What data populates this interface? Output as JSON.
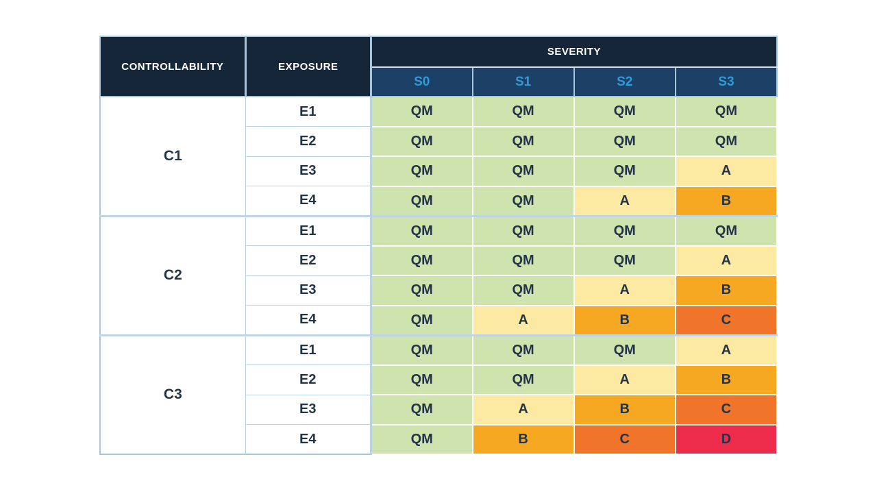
{
  "table": {
    "headers": {
      "controllability": "CONTROLLABILITY",
      "exposure": "EXPOSURE",
      "severity": "SEVERITY"
    },
    "severity_levels": [
      "S0",
      "S1",
      "S2",
      "S3"
    ],
    "groups": [
      {
        "controllability": "C1",
        "rows": [
          {
            "exposure": "E1",
            "values": [
              "QM",
              "QM",
              "QM",
              "QM"
            ]
          },
          {
            "exposure": "E2",
            "values": [
              "QM",
              "QM",
              "QM",
              "QM"
            ]
          },
          {
            "exposure": "E3",
            "values": [
              "QM",
              "QM",
              "QM",
              "A"
            ]
          },
          {
            "exposure": "E4",
            "values": [
              "QM",
              "QM",
              "A",
              "B"
            ]
          }
        ]
      },
      {
        "controllability": "C2",
        "rows": [
          {
            "exposure": "E1",
            "values": [
              "QM",
              "QM",
              "QM",
              "QM"
            ]
          },
          {
            "exposure": "E2",
            "values": [
              "QM",
              "QM",
              "QM",
              "A"
            ]
          },
          {
            "exposure": "E3",
            "values": [
              "QM",
              "QM",
              "A",
              "B"
            ]
          },
          {
            "exposure": "E4",
            "values": [
              "QM",
              "A",
              "B",
              "C"
            ]
          }
        ]
      },
      {
        "controllability": "C3",
        "rows": [
          {
            "exposure": "E1",
            "values": [
              "QM",
              "QM",
              "QM",
              "A"
            ]
          },
          {
            "exposure": "E2",
            "values": [
              "QM",
              "QM",
              "A",
              "B"
            ]
          },
          {
            "exposure": "E3",
            "values": [
              "QM",
              "A",
              "B",
              "C"
            ]
          },
          {
            "exposure": "E4",
            "values": [
              "QM",
              "B",
              "C",
              "D"
            ]
          }
        ]
      }
    ]
  },
  "colors": {
    "header_bg": "#152638",
    "subheader_bg": "#1d4066",
    "severity_text": "#2f9bd8",
    "cell_text": "#243447",
    "grid_border": "#a6c7db",
    "asil": {
      "QM": "#cfe3ae",
      "A": "#fce9a2",
      "B": "#f6a823",
      "C": "#f0752b",
      "D": "#ed2b4a"
    }
  },
  "chart_data": {
    "type": "table",
    "columns": [
      "CONTROLLABILITY",
      "EXPOSURE",
      "S0",
      "S1",
      "S2",
      "S3"
    ],
    "rows": [
      [
        "C1",
        "E1",
        "QM",
        "QM",
        "QM",
        "QM"
      ],
      [
        "C1",
        "E2",
        "QM",
        "QM",
        "QM",
        "QM"
      ],
      [
        "C1",
        "E3",
        "QM",
        "QM",
        "QM",
        "A"
      ],
      [
        "C1",
        "E4",
        "QM",
        "QM",
        "A",
        "B"
      ],
      [
        "C2",
        "E1",
        "QM",
        "QM",
        "QM",
        "QM"
      ],
      [
        "C2",
        "E2",
        "QM",
        "QM",
        "QM",
        "A"
      ],
      [
        "C2",
        "E3",
        "QM",
        "QM",
        "A",
        "B"
      ],
      [
        "C2",
        "E4",
        "QM",
        "A",
        "B",
        "C"
      ],
      [
        "C3",
        "E1",
        "QM",
        "QM",
        "QM",
        "A"
      ],
      [
        "C3",
        "E2",
        "QM",
        "QM",
        "A",
        "B"
      ],
      [
        "C3",
        "E3",
        "QM",
        "A",
        "B",
        "C"
      ],
      [
        "C3",
        "E4",
        "QM",
        "B",
        "C",
        "D"
      ]
    ],
    "legend": [
      "QM",
      "A",
      "B",
      "C",
      "D"
    ],
    "cell_color_map": {
      "QM": "#cfe3ae",
      "A": "#fce9a2",
      "B": "#f6a823",
      "C": "#f0752b",
      "D": "#ed2b4a"
    }
  }
}
